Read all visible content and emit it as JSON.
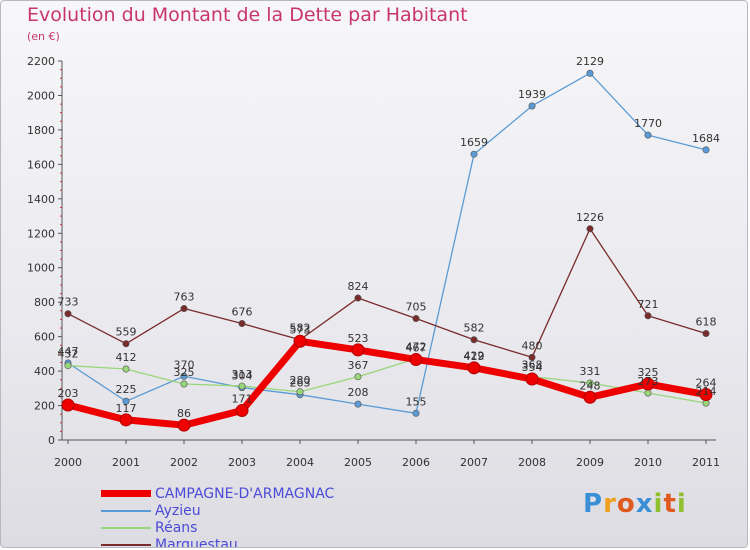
{
  "title": "Evolution du Montant de la Dette par Habitant",
  "subtitle": "(en €)",
  "logo_text": "Proxiti",
  "colors": {
    "title": "#c8356e",
    "axis": "#555555",
    "legend_text": "#4b4bd8",
    "logo": [
      "#3b8fd6",
      "#f0a020",
      "#e05a20",
      "#3b8fd6",
      "#90c030",
      "#e05a20",
      "#90c030"
    ]
  },
  "chart_data": {
    "type": "line",
    "title": "Evolution du Montant de la Dette par Habitant",
    "subtitle": "(en €)",
    "x": [
      "2000",
      "2001",
      "2002",
      "2003",
      "2004",
      "2005",
      "2006",
      "2007",
      "2008",
      "2009",
      "2010",
      "2011"
    ],
    "ylim": [
      0,
      2200
    ],
    "yticks": [
      0,
      200,
      400,
      600,
      800,
      1000,
      1200,
      1400,
      1600,
      1800,
      2000,
      2200
    ],
    "grid": false,
    "legend_position": "bottom-left",
    "series": [
      {
        "name": "CAMPAGNE-D'ARMAGNAC",
        "color": "#ee0000",
        "values": [
          203,
          117,
          86,
          171,
          573,
          523,
          467,
          419,
          354,
          248,
          325,
          264
        ],
        "labels": [
          "203",
          "117",
          "86",
          "171",
          "573",
          "523",
          "467",
          "419",
          "354",
          "248",
          "325",
          "264"
        ]
      },
      {
        "name": "Ayzieu",
        "color": "#5b9bd5",
        "values": [
          447,
          225,
          370,
          304,
          263,
          208,
          155,
          1659,
          1939,
          2129,
          1770,
          1684
        ],
        "labels": [
          "447",
          "225",
          "370",
          "304",
          "263",
          "208",
          "155",
          "1659",
          "1939",
          "2129",
          "1770",
          "1684"
        ]
      },
      {
        "name": "Réans",
        "color": "#99d67a",
        "values": [
          432,
          412,
          325,
          313,
          280,
          367,
          472,
          422,
          368,
          331,
          273,
          214
        ],
        "labels": [
          "432",
          "412",
          "325",
          "313",
          "280",
          "367",
          "472",
          "422",
          "368",
          "331",
          "273",
          "214"
        ]
      },
      {
        "name": "Marguestau",
        "color": "#7a2b2b",
        "values": [
          733,
          559,
          763,
          676,
          582,
          824,
          705,
          582,
          480,
          1226,
          721,
          618
        ],
        "labels": [
          "733",
          "559",
          "763",
          "676",
          "582",
          "824",
          "705",
          "582",
          "480",
          "1226",
          "721",
          "618"
        ]
      }
    ]
  }
}
